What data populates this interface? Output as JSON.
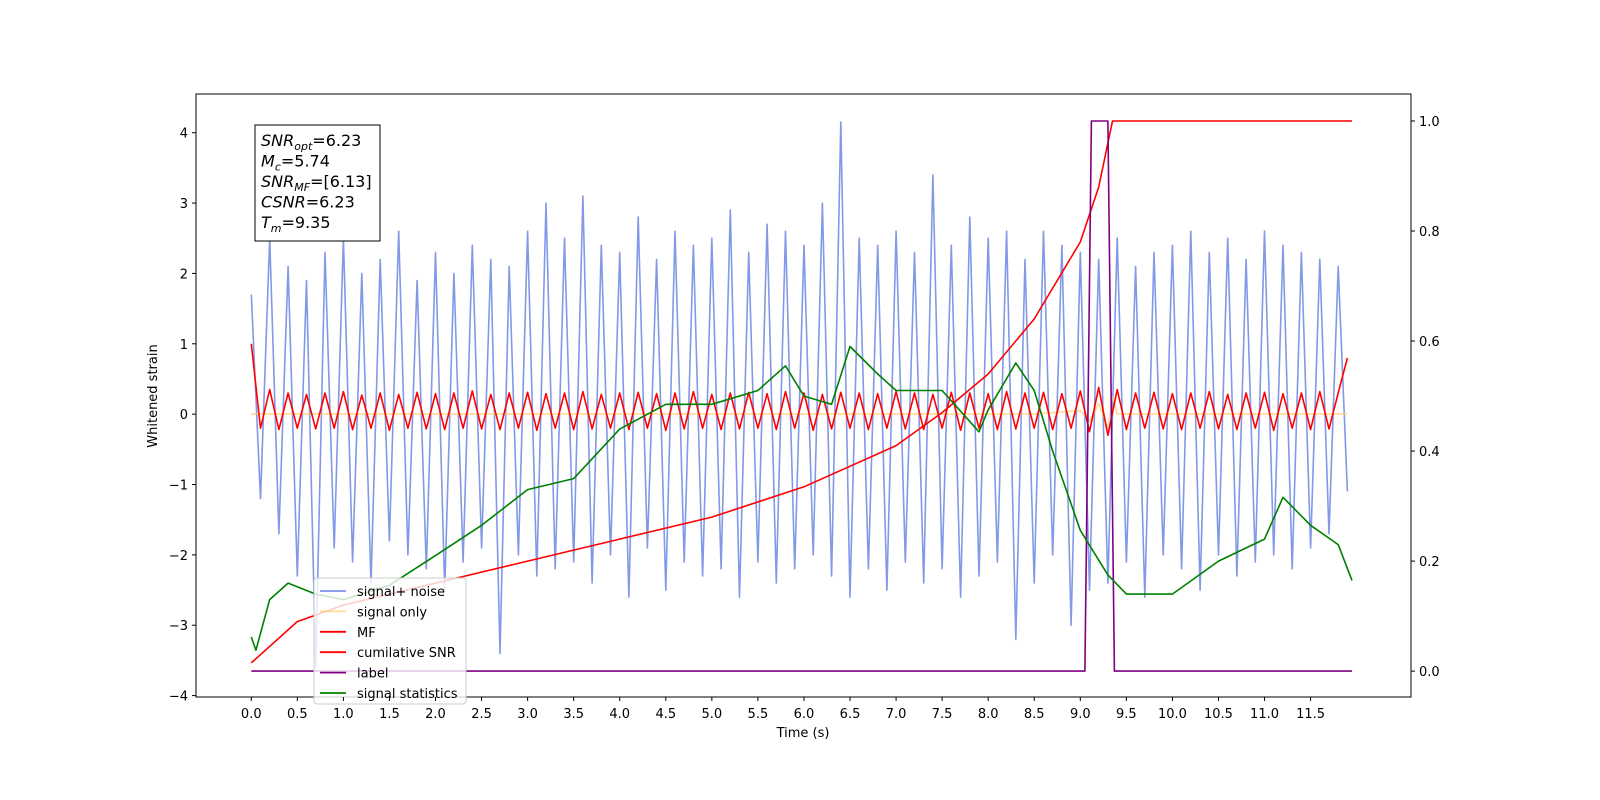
{
  "chart_data": {
    "type": "line",
    "xlabel": "Time (s)",
    "ylabel": "Whitened strain",
    "xlim": [
      -0.6,
      12.59
    ],
    "ylim": [
      -4.02,
      4.55
    ],
    "y2lim": [
      -0.047,
      1.049
    ],
    "grid": false,
    "legend": "lower left",
    "xticks": [
      {
        "value": 0,
        "label": "0.0"
      },
      0.5,
      {
        "value": 1,
        "label": "1.0"
      },
      1.5,
      {
        "value": 2,
        "label": "2.0"
      },
      2.5,
      {
        "value": 3,
        "label": "3.0"
      },
      3.5,
      {
        "value": 4,
        "label": "4.0"
      },
      4.5,
      {
        "value": 5,
        "label": "5.0"
      },
      5.5,
      {
        "value": 6,
        "label": "6.0"
      },
      6.5,
      {
        "value": 7,
        "label": "7.0"
      },
      7.5,
      {
        "value": 8,
        "label": "8.0"
      },
      8.5,
      {
        "value": 9,
        "label": "9.0"
      },
      9.5,
      {
        "value": 10,
        "label": "10.0"
      },
      10.5,
      {
        "value": 11,
        "label": "11.0"
      },
      11.5
    ],
    "yticks": [
      {
        "value": -4,
        "label": "−4"
      },
      {
        "value": -3,
        "label": "−3"
      },
      {
        "value": -2,
        "label": "−2"
      },
      {
        "value": -1,
        "label": "−1"
      },
      0,
      1,
      2,
      3,
      4
    ],
    "y2ticks": [
      {
        "value": 0,
        "label": "0.0"
      },
      0.2,
      0.4,
      0.6,
      0.8,
      {
        "value": 1,
        "label": "1.0"
      }
    ],
    "annotation": [
      {
        "symbol": "SNR",
        "subscript": "opt",
        "text": "=6.23"
      },
      {
        "symbol": "M",
        "subscript": "c",
        "text": "=5.74"
      },
      {
        "symbol": "SNR",
        "subscript": "MF",
        "text": "=[6.13]"
      },
      {
        "symbol": "CSNR",
        "text": "=6.23"
      },
      {
        "symbol": "T",
        "subscript": "m",
        "text": "=9.35"
      }
    ],
    "x": [
      0,
      0.1,
      0.2,
      0.3,
      0.4,
      0.5,
      0.6,
      0.7,
      0.8,
      0.9,
      1,
      1.1,
      1.2,
      1.3,
      1.4,
      1.5,
      1.6,
      1.7,
      1.8,
      1.9,
      2,
      2.1,
      2.2,
      2.3,
      2.4,
      2.5,
      2.6,
      2.7,
      2.8,
      2.9,
      3,
      3.1,
      3.2,
      3.3,
      3.4,
      3.5,
      3.6,
      3.7,
      3.8,
      3.9,
      4,
      4.1,
      4.2,
      4.3,
      4.4,
      4.5,
      4.6,
      4.7,
      4.8,
      4.9,
      5,
      5.1,
      5.2,
      5.3,
      5.4,
      5.5,
      5.6,
      5.7,
      5.8,
      5.9,
      6,
      6.1,
      6.2,
      6.3,
      6.4,
      6.5,
      6.6,
      6.7,
      6.8,
      6.9,
      7,
      7.1,
      7.2,
      7.3,
      7.4,
      7.5,
      7.6,
      7.7,
      7.8,
      7.9,
      8,
      8.1,
      8.2,
      8.3,
      8.4,
      8.5,
      8.6,
      8.7,
      8.8,
      8.9,
      9,
      9.1,
      9.2,
      9.3,
      9.4,
      9.5,
      9.6,
      9.7,
      9.8,
      9.9,
      10,
      10.1,
      10.2,
      10.3,
      10.4,
      10.5,
      10.6,
      10.7,
      10.8,
      10.9,
      11,
      11.1,
      11.2,
      11.3,
      11.4,
      11.5,
      11.6,
      11.7,
      11.8,
      11.9
    ],
    "series": [
      {
        "name": "signal+ noise",
        "color": "#7b93e6",
        "values": [
          1.7,
          -1.2,
          2.5,
          -1.7,
          2.1,
          -2.3,
          1.9,
          -3.6,
          2.3,
          -1.9,
          2.5,
          -2.1,
          2.0,
          -2.4,
          2.2,
          -1.8,
          2.6,
          -2.0,
          1.9,
          -2.2,
          2.3,
          -2.5,
          2.0,
          -2.1,
          2.4,
          -1.9,
          2.2,
          -3.4,
          2.1,
          -2.0,
          2.6,
          -2.3,
          3.0,
          -2.2,
          2.5,
          -2.1,
          3.1,
          -2.4,
          2.4,
          -2.0,
          2.3,
          -2.6,
          2.8,
          -1.9,
          2.2,
          -2.5,
          2.6,
          -2.1,
          2.4,
          -2.3,
          2.5,
          -2.2,
          2.9,
          -2.6,
          2.3,
          -2.1,
          2.7,
          -2.4,
          2.6,
          -2.2,
          2.4,
          -2.0,
          3.0,
          -2.3,
          4.15,
          -2.6,
          2.5,
          -2.2,
          2.4,
          -2.5,
          2.6,
          -2.1,
          2.3,
          -2.4,
          3.4,
          -2.2,
          2.4,
          -2.6,
          2.8,
          -2.3,
          2.5,
          -2.1,
          2.6,
          -3.2,
          2.2,
          -2.4,
          2.6,
          -2.0,
          2.4,
          -3.0,
          2.3,
          -2.5,
          2.2,
          -2.4,
          2.5,
          -2.1,
          2.1,
          -2.6,
          2.3,
          -2.0,
          2.4,
          -2.2,
          2.6,
          -2.5,
          2.3,
          -2.0,
          2.5,
          -2.3,
          2.2,
          -2.1,
          2.6,
          -2.0,
          2.4,
          -2.2,
          2.3,
          -1.9,
          2.2,
          -1.7,
          2.1,
          -1.1
        ]
      },
      {
        "name": "signal only",
        "color": "#ffcc66",
        "x": [
          0,
          8.5,
          9.0,
          9.1,
          9.2,
          9.3,
          9.35,
          9.4,
          11.9
        ],
        "values": [
          0,
          0,
          0.05,
          -0.1,
          0.15,
          -0.2,
          0.25,
          0,
          0
        ]
      },
      {
        "name": "MF",
        "color": "#ff0000",
        "values": [
          1.0,
          -0.2,
          0.35,
          -0.22,
          0.3,
          -0.2,
          0.28,
          -0.21,
          0.3,
          -0.2,
          0.32,
          -0.22,
          0.27,
          -0.2,
          0.3,
          -0.23,
          0.28,
          -0.2,
          0.31,
          -0.21,
          0.29,
          -0.22,
          0.3,
          -0.2,
          0.33,
          -0.21,
          0.28,
          -0.22,
          0.3,
          -0.2,
          0.31,
          -0.23,
          0.29,
          -0.2,
          0.3,
          -0.22,
          0.32,
          -0.21,
          0.28,
          -0.2,
          0.3,
          -0.22,
          0.31,
          -0.2,
          0.29,
          -0.23,
          0.3,
          -0.21,
          0.32,
          -0.2,
          0.28,
          -0.22,
          0.3,
          -0.21,
          0.31,
          -0.2,
          0.29,
          -0.22,
          0.32,
          -0.2,
          0.3,
          -0.23,
          0.28,
          -0.21,
          0.31,
          -0.2,
          0.3,
          -0.22,
          0.29,
          -0.2,
          0.32,
          -0.21,
          0.3,
          -0.22,
          0.28,
          -0.2,
          0.31,
          -0.23,
          0.3,
          -0.2,
          0.29,
          -0.22,
          0.32,
          -0.21,
          0.3,
          -0.2,
          0.31,
          -0.22,
          0.29,
          -0.2,
          0.33,
          -0.25,
          0.38,
          -0.3,
          0.35,
          -0.22,
          0.3,
          -0.2,
          0.31,
          -0.21,
          0.29,
          -0.22,
          0.3,
          -0.2,
          0.32,
          -0.21,
          0.28,
          -0.22,
          0.3,
          -0.2,
          0.31,
          -0.23,
          0.29,
          -0.2,
          0.3,
          -0.22,
          0.32,
          -0.21,
          0.3,
          0.8
        ]
      },
      {
        "name": "cumilative SNR",
        "color": "#ff0000",
        "axis": "y2",
        "x": [
          0,
          0.5,
          1,
          2,
          3,
          4,
          5,
          6,
          7,
          7.5,
          8,
          8.5,
          9,
          9.2,
          9.35,
          11.95
        ],
        "values": [
          0.015,
          0.09,
          0.12,
          0.16,
          0.2,
          0.24,
          0.28,
          0.335,
          0.41,
          0.47,
          0.54,
          0.64,
          0.78,
          0.88,
          1.0,
          1.0
        ]
      },
      {
        "name": "label",
        "color": "#800080",
        "axis": "y2",
        "x": [
          0,
          9.05,
          9.12,
          9.3,
          9.37,
          11.95
        ],
        "values": [
          0,
          0,
          1,
          1,
          0,
          0
        ]
      },
      {
        "name": "signal statistics",
        "color": "#008000",
        "axis": "y2",
        "x": [
          0,
          0.05,
          0.2,
          0.4,
          0.7,
          1.0,
          1.5,
          2.0,
          2.5,
          3.0,
          3.5,
          4.0,
          4.5,
          5.0,
          5.5,
          5.8,
          6.0,
          6.3,
          6.5,
          6.8,
          7.0,
          7.5,
          7.9,
          8.0,
          8.3,
          8.5,
          8.7,
          9.0,
          9.3,
          9.5,
          10.0,
          10.5,
          11.0,
          11.2,
          11.5,
          11.8,
          11.95
        ],
        "values": [
          0.062,
          0.038,
          0.13,
          0.16,
          0.14,
          0.13,
          0.156,
          0.21,
          0.265,
          0.33,
          0.35,
          0.44,
          0.485,
          0.485,
          0.51,
          0.555,
          0.5,
          0.485,
          0.59,
          0.54,
          0.51,
          0.51,
          0.435,
          0.475,
          0.56,
          0.51,
          0.4,
          0.256,
          0.175,
          0.14,
          0.14,
          0.2,
          0.24,
          0.316,
          0.265,
          0.23,
          0.165
        ]
      }
    ]
  }
}
